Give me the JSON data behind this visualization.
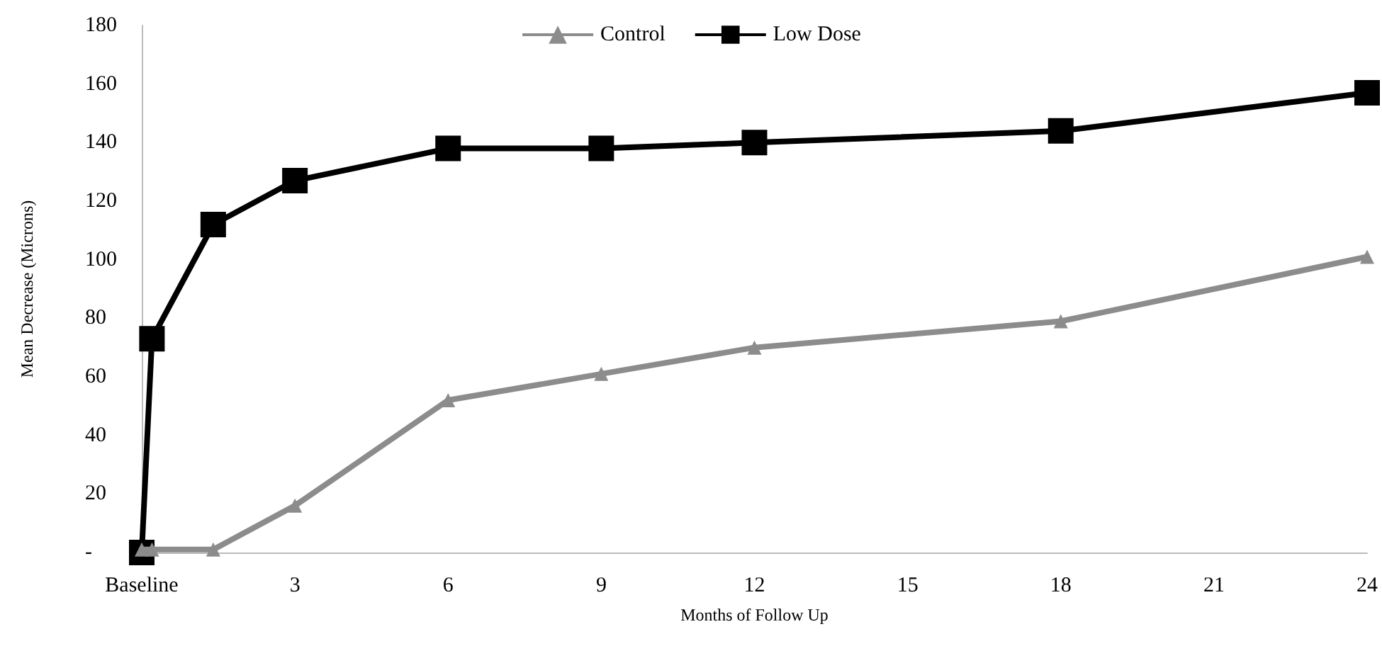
{
  "chart_data": {
    "type": "line",
    "xlabel": "Months of Follow Up",
    "ylabel": "Mean Decrease (Microns)",
    "xlim": [
      0,
      24
    ],
    "xticks": [
      {
        "value": 0,
        "label": "Baseline"
      },
      3,
      6,
      9,
      12,
      15,
      18,
      21,
      24
    ],
    "ylim": [
      0,
      180
    ],
    "yticks": [
      {
        "value": 0,
        "label": "-"
      },
      20,
      40,
      60,
      80,
      100,
      120,
      140,
      160,
      180
    ],
    "grid": false,
    "legend": "top",
    "line_style": "solid",
    "series": [
      {
        "name": "Control",
        "color": "#8c8c8c",
        "marker": "triangle",
        "x": [
          0,
          0.2,
          1.4,
          3,
          6,
          9,
          12,
          18,
          24
        ],
        "values": [
          1,
          1,
          1,
          16,
          52,
          61,
          70,
          79,
          101
        ]
      },
      {
        "name": "Low Dose",
        "color": "#000000",
        "marker": "square",
        "x": [
          0,
          0.2,
          1.4,
          3,
          6,
          9,
          12,
          18,
          24
        ],
        "values": [
          0,
          73,
          112,
          127,
          138,
          138,
          140,
          144,
          157
        ]
      }
    ]
  }
}
